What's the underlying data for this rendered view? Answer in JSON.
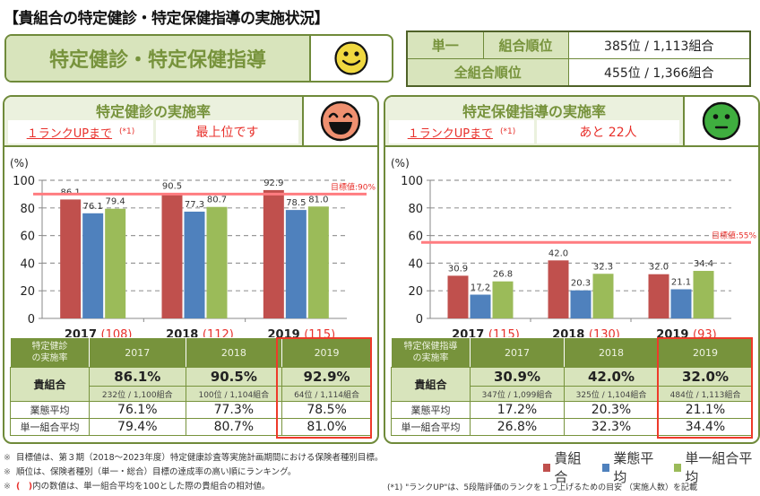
{
  "page_title": "【貴組合の特定健診・特定保健指導の実施状況】",
  "summary": {
    "label": "特定健診・特定保健指導",
    "face": "smiley-yellow-icon",
    "face_color": "#f0d840"
  },
  "rank": {
    "row1_label_a": "単一",
    "row1_label_b": "組合順位",
    "row1_value": "385位 / 1,113組合",
    "row2_label": "全組合順位",
    "row2_value": "455位 / 1,366組合"
  },
  "colors": {
    "own": "#c0504d",
    "industry": "#4f81bd",
    "single": "#9bbb59",
    "target": "#ff7c80",
    "accent_red": "#e8302b",
    "panel_green": "#77933c"
  },
  "panels": [
    {
      "title": "特定健診の実施率",
      "rankup_label": "１ランクUPまで",
      "rankup_note": "(*1)",
      "rankup_value": "最上位です",
      "face": "laughing-face-icon",
      "face_color": "#ef9070",
      "table": {
        "corner": [
          "特定健診",
          "の実施率"
        ],
        "years": [
          "2017",
          "2018",
          "2019"
        ],
        "own_label": "貴組合",
        "own_values": [
          "86.1%",
          "90.5%",
          "92.9%"
        ],
        "own_ranks": [
          "232位 / 1,100組合",
          "100位 / 1,104組合",
          "64位 / 1,114組合"
        ],
        "industry_label": "業態平均",
        "industry_values": [
          "76.1%",
          "77.3%",
          "78.5%"
        ],
        "single_label": "単一組合平均",
        "single_values": [
          "79.4%",
          "80.7%",
          "81.0%"
        ]
      }
    },
    {
      "title": "特定保健指導の実施率",
      "rankup_label": "１ランクUPまで",
      "rankup_note": "(*1)",
      "rankup_value": "あと 22人",
      "face": "neutral-face-icon",
      "face_color": "#3fae3f",
      "table": {
        "corner": [
          "特定保健指導",
          "の実施率"
        ],
        "years": [
          "2017",
          "2018",
          "2019"
        ],
        "own_label": "貴組合",
        "own_values": [
          "30.9%",
          "42.0%",
          "32.0%"
        ],
        "own_ranks": [
          "347位 / 1,099組合",
          "325位 / 1,104組合",
          "484位 / 1,113組合"
        ],
        "industry_label": "業態平均",
        "industry_values": [
          "17.2%",
          "20.3%",
          "21.1%"
        ],
        "single_label": "単一組合平均",
        "single_values": [
          "26.8%",
          "32.3%",
          "34.4%"
        ]
      }
    }
  ],
  "chart_data": [
    {
      "type": "bar",
      "title": "特定健診の実施率",
      "ylabel": "(%)",
      "xlabel": "",
      "ylim": [
        0,
        100
      ],
      "yticks": [
        0,
        20,
        40,
        60,
        80,
        100
      ],
      "grid": true,
      "categories": [
        "2017",
        "2018",
        "2019"
      ],
      "category_notes": [
        "(108)",
        "(112)",
        "(115)"
      ],
      "series": [
        {
          "name": "貴組合",
          "values": [
            86.1,
            90.5,
            92.9
          ]
        },
        {
          "name": "業態平均",
          "values": [
            76.1,
            77.3,
            78.5
          ]
        },
        {
          "name": "単一組合平均",
          "values": [
            79.4,
            80.7,
            81.0
          ]
        }
      ],
      "target": {
        "value": 90,
        "label": "目標値:90%"
      }
    },
    {
      "type": "bar",
      "title": "特定保健指導の実施率",
      "ylabel": "(%)",
      "xlabel": "",
      "ylim": [
        0,
        100
      ],
      "yticks": [
        0,
        20,
        40,
        60,
        80,
        100
      ],
      "grid": true,
      "categories": [
        "2017",
        "2018",
        "2019"
      ],
      "category_notes": [
        "(115)",
        "(130)",
        "(93)"
      ],
      "series": [
        {
          "name": "貴組合",
          "values": [
            30.9,
            42.0,
            32.0
          ]
        },
        {
          "name": "業態平均",
          "values": [
            17.2,
            20.3,
            21.1
          ]
        },
        {
          "name": "単一組合平均",
          "values": [
            26.8,
            32.3,
            34.4
          ]
        }
      ],
      "target": {
        "value": 55,
        "label": "目標値:55%"
      }
    }
  ],
  "notes": {
    "mark": "※",
    "line1": "目標値は、第３期（2018～2023年度）特定健康診査等実施計画期間における保険者種別目標。",
    "line2": "順位は、保険者種別（単一・総合）目標の達成率の高い順にランキング。",
    "line3_paren": "(　)",
    "line3": "内の数値は、単一組合平均を100とした際の貴組合の相対値。"
  },
  "legend": [
    "貴組合",
    "業態平均",
    "単一組合平均"
  ],
  "footnote": "(*1) \"ランクUP\"は、5段階評価のランクを１つ上げるための目安 （実施人数）を記載"
}
